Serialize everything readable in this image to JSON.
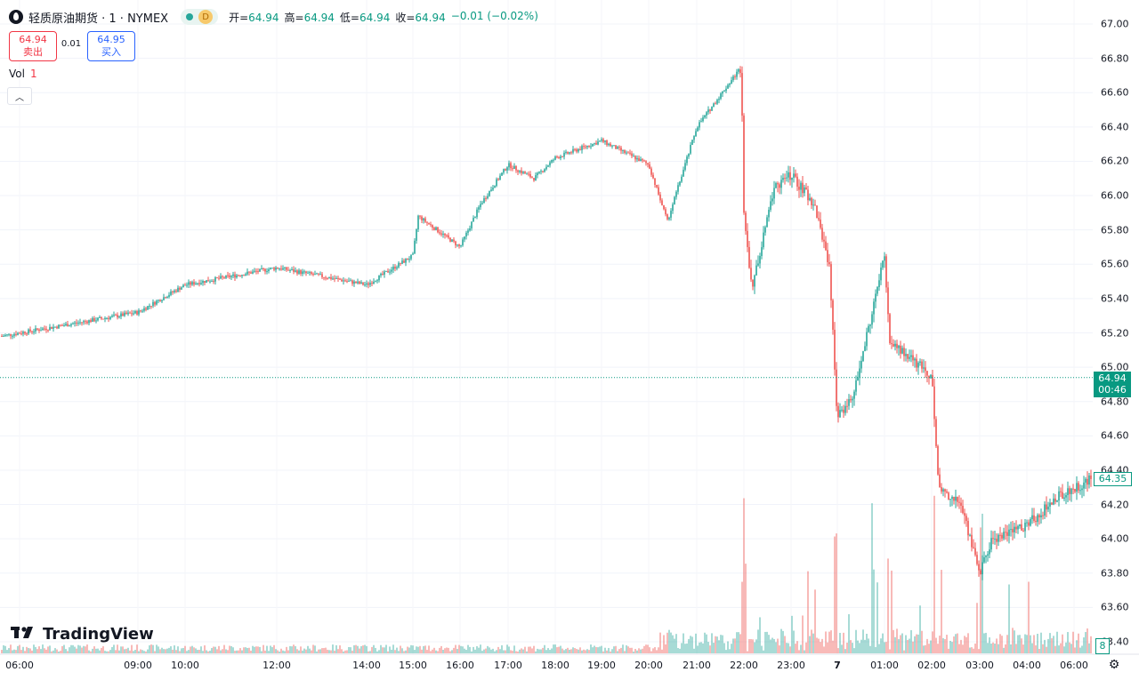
{
  "header": {
    "symbol": "轻质原油期货 · 1 · NYMEX",
    "interval_badge": "D",
    "ohlc": [
      {
        "label": "开=",
        "value": "64.94"
      },
      {
        "label": "高=",
        "value": "64.94"
      },
      {
        "label": "低=",
        "value": "64.94"
      },
      {
        "label": "收=",
        "value": "64.94"
      },
      {
        "label": "",
        "value": "−0.01 (−0.02%)"
      }
    ]
  },
  "trade": {
    "sell_price": "64.94",
    "sell_label": "卖出",
    "spread": "0.01",
    "buy_price": "64.95",
    "buy_label": "买入"
  },
  "volume_legend": {
    "label": "Vol",
    "value": "1"
  },
  "price_axis": [
    "67.00",
    "66.80",
    "66.60",
    "66.40",
    "66.20",
    "66.00",
    "65.80",
    "65.60",
    "65.40",
    "65.20",
    "65.00",
    "64.80",
    "64.60",
    "64.40",
    "64.20",
    "64.00",
    "63.80",
    "63.60",
    "63.40"
  ],
  "time_axis": [
    "06:00",
    "09:00",
    "10:00",
    "12:00",
    "14:00",
    "15:00",
    "16:00",
    "17:00",
    "18:00",
    "19:00",
    "20:00",
    "21:00",
    "22:00",
    "23:00",
    "7",
    "01:00",
    "02:00",
    "03:00",
    "04:00",
    "06:00"
  ],
  "last_price_tag": {
    "price": "64.94",
    "countdown": "00:46"
  },
  "cursor_price": "64.35",
  "volume_tag": "8",
  "brand": "TradingView",
  "colors": {
    "up": "#26a69a",
    "down": "#ef5350",
    "last_line": "#089981"
  },
  "chart_data": {
    "type": "candlestick",
    "title": "轻质原油期货 · 1 · NYMEX",
    "ylim": [
      63.4,
      67.0
    ],
    "x_labels": [
      "06:00",
      "09:00",
      "10:00",
      "12:00",
      "14:00",
      "15:00",
      "16:00",
      "17:00",
      "18:00",
      "19:00",
      "20:00",
      "21:00",
      "22:00",
      "23:00",
      "7",
      "01:00",
      "02:00",
      "03:00",
      "04:00",
      "06:00"
    ],
    "price_path": [
      {
        "t": "06:00",
        "p": 65.18
      },
      {
        "t": "09:00",
        "p": 65.32
      },
      {
        "t": "10:00",
        "p": 65.48
      },
      {
        "t": "12:00",
        "p": 65.58
      },
      {
        "t": "14:00",
        "p": 65.48
      },
      {
        "t": "15:00",
        "p": 65.65
      },
      {
        "t": "15:10",
        "p": 65.88
      },
      {
        "t": "16:00",
        "p": 65.7
      },
      {
        "t": "16:30",
        "p": 65.95
      },
      {
        "t": "17:00",
        "p": 66.18
      },
      {
        "t": "17:30",
        "p": 66.1
      },
      {
        "t": "18:00",
        "p": 66.22
      },
      {
        "t": "19:00",
        "p": 66.32
      },
      {
        "t": "20:00",
        "p": 66.18
      },
      {
        "t": "20:20",
        "p": 65.85
      },
      {
        "t": "21:00",
        "p": 66.4
      },
      {
        "t": "21:50",
        "p": 66.75
      },
      {
        "t": "22:00",
        "p": 65.9
      },
      {
        "t": "22:10",
        "p": 65.45
      },
      {
        "t": "22:40",
        "p": 66.05
      },
      {
        "t": "23:00",
        "p": 66.12
      },
      {
        "t": "23:30",
        "p": 65.95
      },
      {
        "t": "23:45",
        "p": 65.6
      },
      {
        "t": "7 00:00",
        "p": 64.7
      },
      {
        "t": "7 00:30",
        "p": 64.85
      },
      {
        "t": "01:00",
        "p": 65.65
      },
      {
        "t": "01:10",
        "p": 65.15
      },
      {
        "t": "02:00",
        "p": 64.95
      },
      {
        "t": "02:10",
        "p": 64.3
      },
      {
        "t": "02:40",
        "p": 64.2
      },
      {
        "t": "03:00",
        "p": 63.8
      },
      {
        "t": "03:20",
        "p": 64.0
      },
      {
        "t": "04:00",
        "p": 64.08
      },
      {
        "t": "05:00",
        "p": 64.25
      },
      {
        "t": "06:00",
        "p": 64.35
      }
    ],
    "last_price": 64.94,
    "volume_series": "Vol",
    "volume_spikes": [
      {
        "t": "22:00",
        "v": "high"
      },
      {
        "t": "7 00:00",
        "v": "high"
      },
      {
        "t": "01:00",
        "v": "high"
      },
      {
        "t": "02:00",
        "v": "medium"
      },
      {
        "t": "03:00",
        "v": "medium"
      }
    ]
  }
}
